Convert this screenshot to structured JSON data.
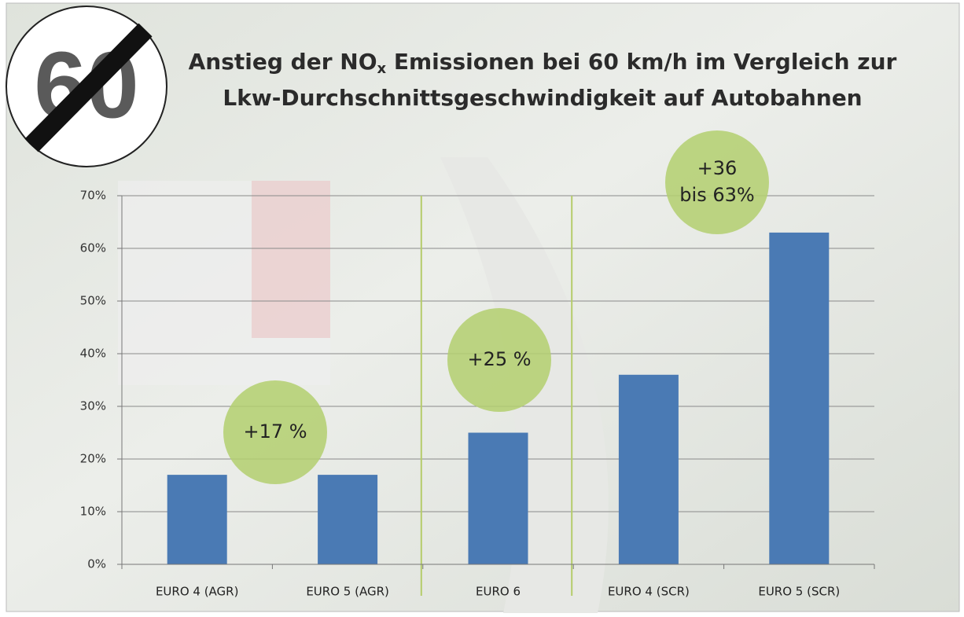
{
  "chart_data": {
    "type": "bar",
    "title": [
      "Anstieg der NO",
      "x",
      " Emissionen bei 60 km/h im Vergleich zur",
      "Lkw-Durchschnittsgeschwindigkeit auf Autobahnen"
    ],
    "sign": "60",
    "categories": [
      "EURO 4 (AGR)",
      "EURO 5 (AGR)",
      "EURO 6",
      "EURO 4 (SCR)",
      "EURO 5 (SCR)"
    ],
    "values": [
      17,
      17,
      25,
      36,
      63
    ],
    "color": "#4a7ab4",
    "ylim": [
      0,
      70
    ],
    "yticks": [
      {
        "value": 0,
        "label": "0%"
      },
      {
        "value": 10,
        "label": "10%"
      },
      {
        "value": 20,
        "label": "20%"
      },
      {
        "value": 30,
        "label": "30%"
      },
      {
        "value": 40,
        "label": "40%"
      },
      {
        "value": 50,
        "label": "50%"
      },
      {
        "value": 60,
        "label": "60%"
      },
      {
        "value": 70,
        "label": "70%"
      }
    ],
    "grid": true,
    "annotations": [
      [
        "+17 %"
      ],
      [
        "+25 %"
      ],
      [
        "+36",
        "bis 63%"
      ]
    ]
  }
}
